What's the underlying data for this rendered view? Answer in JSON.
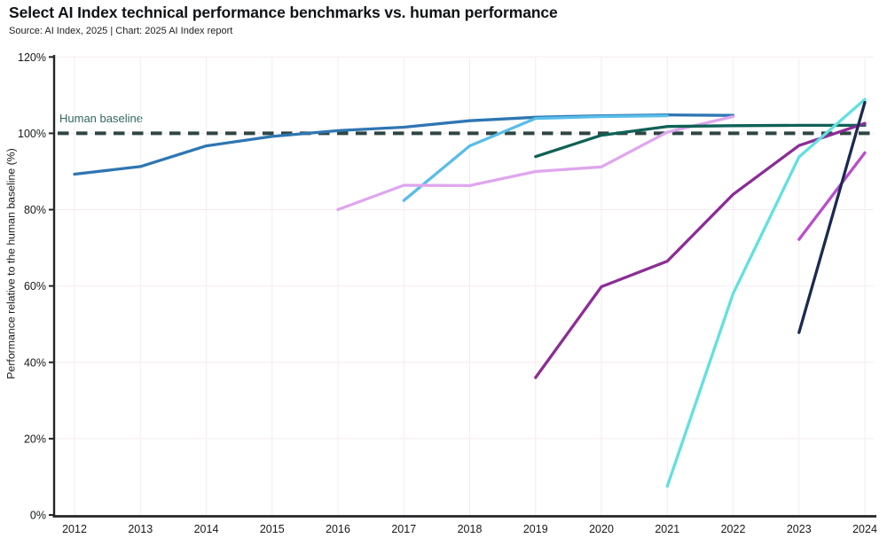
{
  "header": {
    "title": "Select AI Index technical performance benchmarks vs. human performance",
    "subtitle": "Source: AI Index, 2025 | Chart: 2025 AI Index report"
  },
  "chart_data": {
    "type": "line",
    "title": "Select AI Index technical performance benchmarks vs. human performance",
    "subtitle": "Source: AI Index, 2025 | Chart: 2025 AI Index report",
    "xlabel": "",
    "ylabel": "Performance relative to the human baseline (%)",
    "xlim": [
      2012,
      2024
    ],
    "ylim": [
      0,
      120
    ],
    "x_ticks": [
      2012,
      2013,
      2014,
      2015,
      2016,
      2017,
      2018,
      2019,
      2020,
      2021,
      2022,
      2023,
      2024
    ],
    "y_ticks_percent": [
      0,
      20,
      40,
      60,
      80,
      100,
      120
    ],
    "grid": true,
    "legend": "none",
    "baseline": {
      "label": "Human baseline",
      "value_percent": 100,
      "style": "dashed",
      "color": "#2e4643",
      "label_color": "#33685f"
    },
    "series": [
      {
        "name": "dark-blue",
        "color": "#2e76b2",
        "points": [
          [
            2012,
            89.3
          ],
          [
            2013,
            91.3
          ],
          [
            2014,
            96.7
          ],
          [
            2015,
            99.2
          ],
          [
            2016,
            100.7
          ],
          [
            2017,
            101.6
          ],
          [
            2018,
            103.3
          ],
          [
            2019,
            104.2
          ],
          [
            2020,
            104.6
          ],
          [
            2021,
            104.8
          ],
          [
            2022,
            104.7
          ]
        ]
      },
      {
        "name": "light-blue",
        "color": "#58bde9",
        "points": [
          [
            2017,
            82.4
          ],
          [
            2018,
            96.7
          ],
          [
            2019,
            103.9
          ],
          [
            2020,
            104.4
          ],
          [
            2021,
            104.6
          ]
        ]
      },
      {
        "name": "light-purple",
        "color": "#dfa6ee",
        "points": [
          [
            2016,
            80.0
          ],
          [
            2017,
            86.4
          ],
          [
            2018,
            86.3
          ],
          [
            2019,
            90.0
          ],
          [
            2020,
            91.2
          ],
          [
            2021,
            100.3
          ],
          [
            2022,
            104.4
          ]
        ]
      },
      {
        "name": "dark-teal",
        "color": "#0f6156",
        "points": [
          [
            2019,
            93.9
          ],
          [
            2020,
            99.5
          ],
          [
            2021,
            101.8
          ],
          [
            2022,
            102.0
          ],
          [
            2023,
            102.1
          ],
          [
            2024,
            102.1
          ]
        ]
      },
      {
        "name": "dark-purple",
        "color": "#8c2d96",
        "points": [
          [
            2019,
            36.0
          ],
          [
            2020,
            59.8
          ],
          [
            2021,
            66.5
          ],
          [
            2022,
            84.0
          ],
          [
            2023,
            96.8
          ],
          [
            2024,
            102.6
          ]
        ]
      },
      {
        "name": "aqua",
        "color": "#62e0e0",
        "points": [
          [
            2021,
            7.5
          ],
          [
            2022,
            58.0
          ],
          [
            2023,
            93.8
          ],
          [
            2024,
            108.9
          ]
        ]
      },
      {
        "name": "magenta",
        "color": "#b94ecb",
        "points": [
          [
            2023,
            72.2
          ],
          [
            2024,
            94.9
          ]
        ]
      },
      {
        "name": "navy",
        "color": "#1b2a52",
        "points": [
          [
            2023,
            47.8
          ],
          [
            2024,
            108.1
          ]
        ]
      }
    ],
    "style": {
      "axis_color": "#232527",
      "grid_color": "#f5ebf1",
      "tick_label_color": "#16181a"
    }
  }
}
